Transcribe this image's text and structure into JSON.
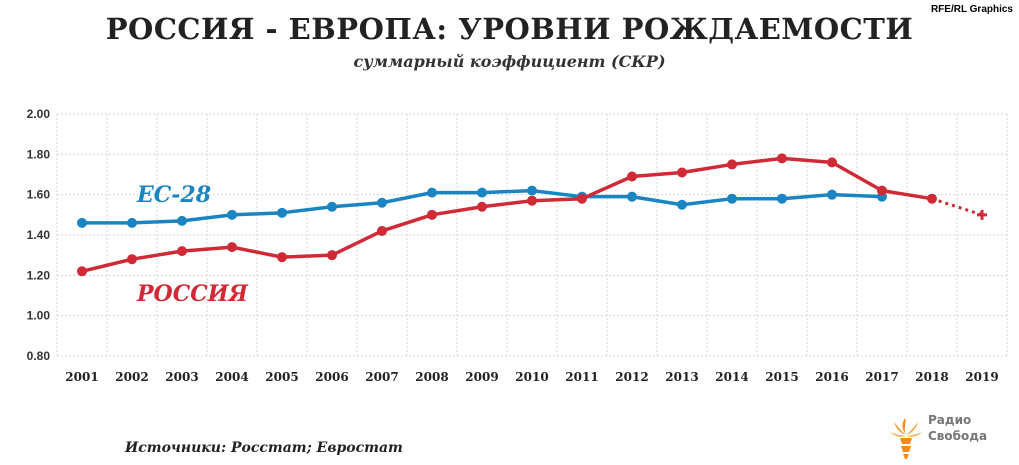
{
  "credit": "RFE/RL Graphics",
  "title": "РОССИЯ - ЕВРОПА: УРОВНИ РОЖДАЕМОСТИ",
  "subtitle": "суммарный коэффициент (СКР)",
  "source": "Источники: Росстат; Евростат",
  "logo": {
    "icon": "radio-svoboda-flame-icon",
    "text": "Радио\nСвобода"
  },
  "colors": {
    "eu": "#1b84c2",
    "russia": "#cf2a36",
    "grid": "#d9d9d9",
    "axis_text": "#333333"
  },
  "chart_data": {
    "type": "line",
    "categories": [
      "2001",
      "2002",
      "2003",
      "2004",
      "2005",
      "2006",
      "2007",
      "2008",
      "2009",
      "2010",
      "2011",
      "2012",
      "2013",
      "2014",
      "2015",
      "2016",
      "2017",
      "2018",
      "2019"
    ],
    "ylim": [
      0.8,
      2.0
    ],
    "yticks": [
      "0.80",
      "1.00",
      "1.20",
      "1.40",
      "1.60",
      "1.80",
      "2.00"
    ],
    "grid": "on (horizontal and vertical, dotted)",
    "series": [
      {
        "name": "ЕС-28",
        "color": "#1b84c2",
        "values": [
          1.46,
          1.46,
          1.47,
          1.5,
          1.51,
          1.54,
          1.56,
          1.61,
          1.61,
          1.62,
          1.59,
          1.59,
          1.55,
          1.58,
          1.58,
          1.6,
          1.59,
          null,
          null
        ]
      },
      {
        "name": "РОССИЯ",
        "color": "#cf2a36",
        "values": [
          1.22,
          1.28,
          1.32,
          1.34,
          1.29,
          1.3,
          1.42,
          1.5,
          1.54,
          1.57,
          1.58,
          1.69,
          1.71,
          1.75,
          1.78,
          1.76,
          1.62,
          1.58,
          1.5
        ],
        "estimated_from": "2018"
      }
    ]
  }
}
